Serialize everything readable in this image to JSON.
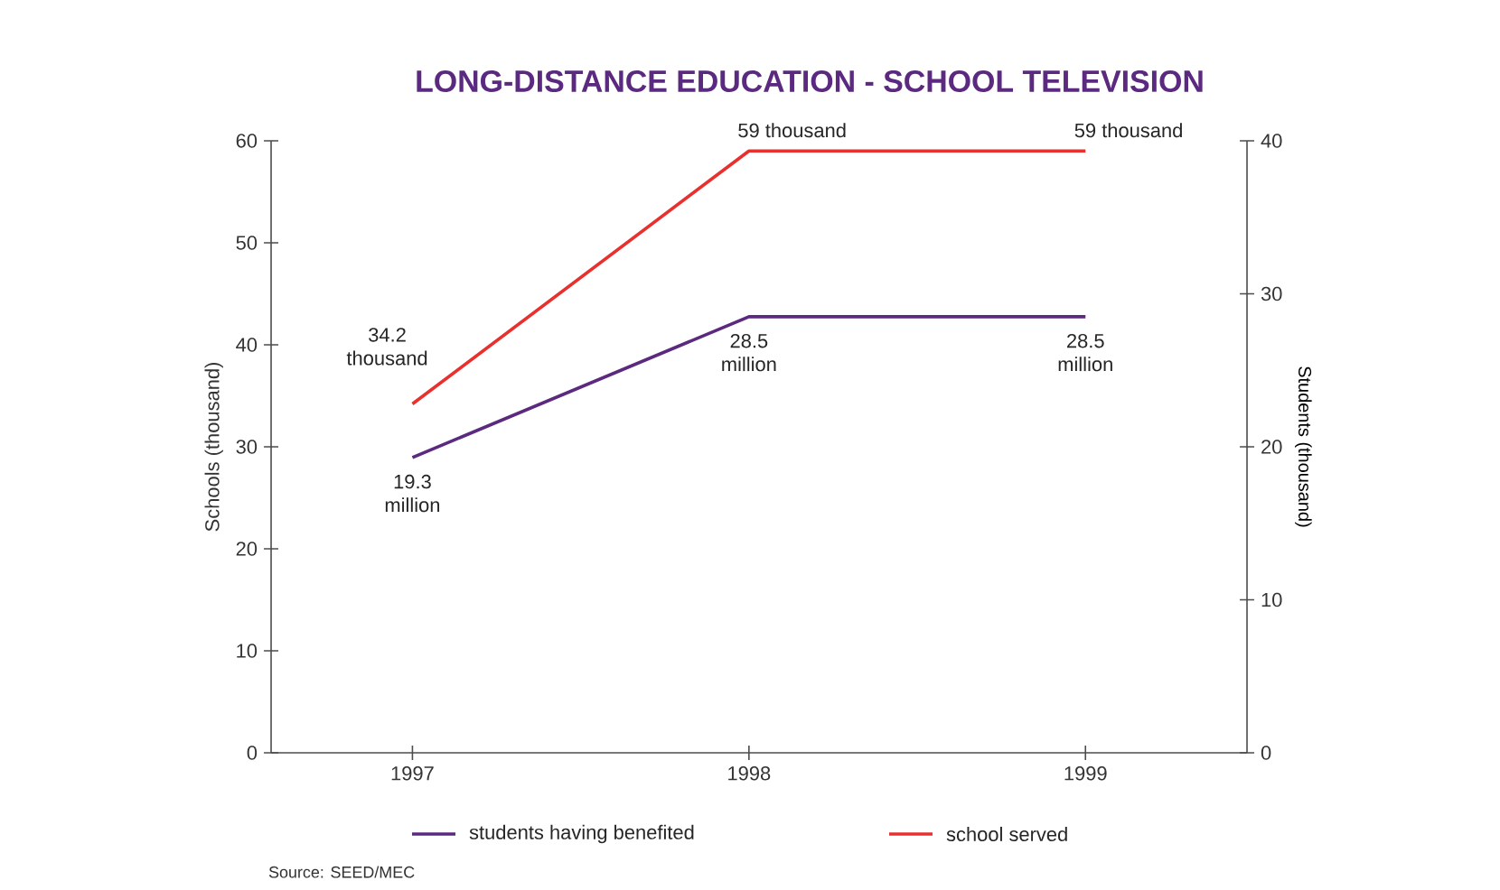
{
  "chart_data": {
    "type": "line",
    "title": "LONG-DISTANCE EDUCATION - SCHOOL TELEVISION",
    "ylabel": "Schools (thousand)",
    "y2label": "Students (thousand)",
    "categories": [
      "1997",
      "1998",
      "1999"
    ],
    "series": [
      {
        "name": "students having benefited",
        "color": "#5b2a80",
        "axis": "y2",
        "values": [
          19.3,
          28.5,
          28.5
        ],
        "value_labels": [
          "19.3 million",
          "28.5 million",
          "28.5 million"
        ]
      },
      {
        "name": "school served",
        "color": "#e8312f",
        "axis": "y",
        "values": [
          34.2,
          59,
          59
        ],
        "value_labels": [
          "34.2 thousand",
          "59 thousand",
          "59 thousand"
        ]
      }
    ],
    "ylim": [
      0,
      60
    ],
    "yticks": [
      0,
      10,
      20,
      30,
      40,
      50,
      60
    ],
    "y2lim": [
      0,
      40
    ],
    "y2ticks": [
      0,
      10,
      20,
      30,
      40
    ],
    "legend": "bottom",
    "annotations": [
      "Source: SEED/MEC"
    ]
  }
}
